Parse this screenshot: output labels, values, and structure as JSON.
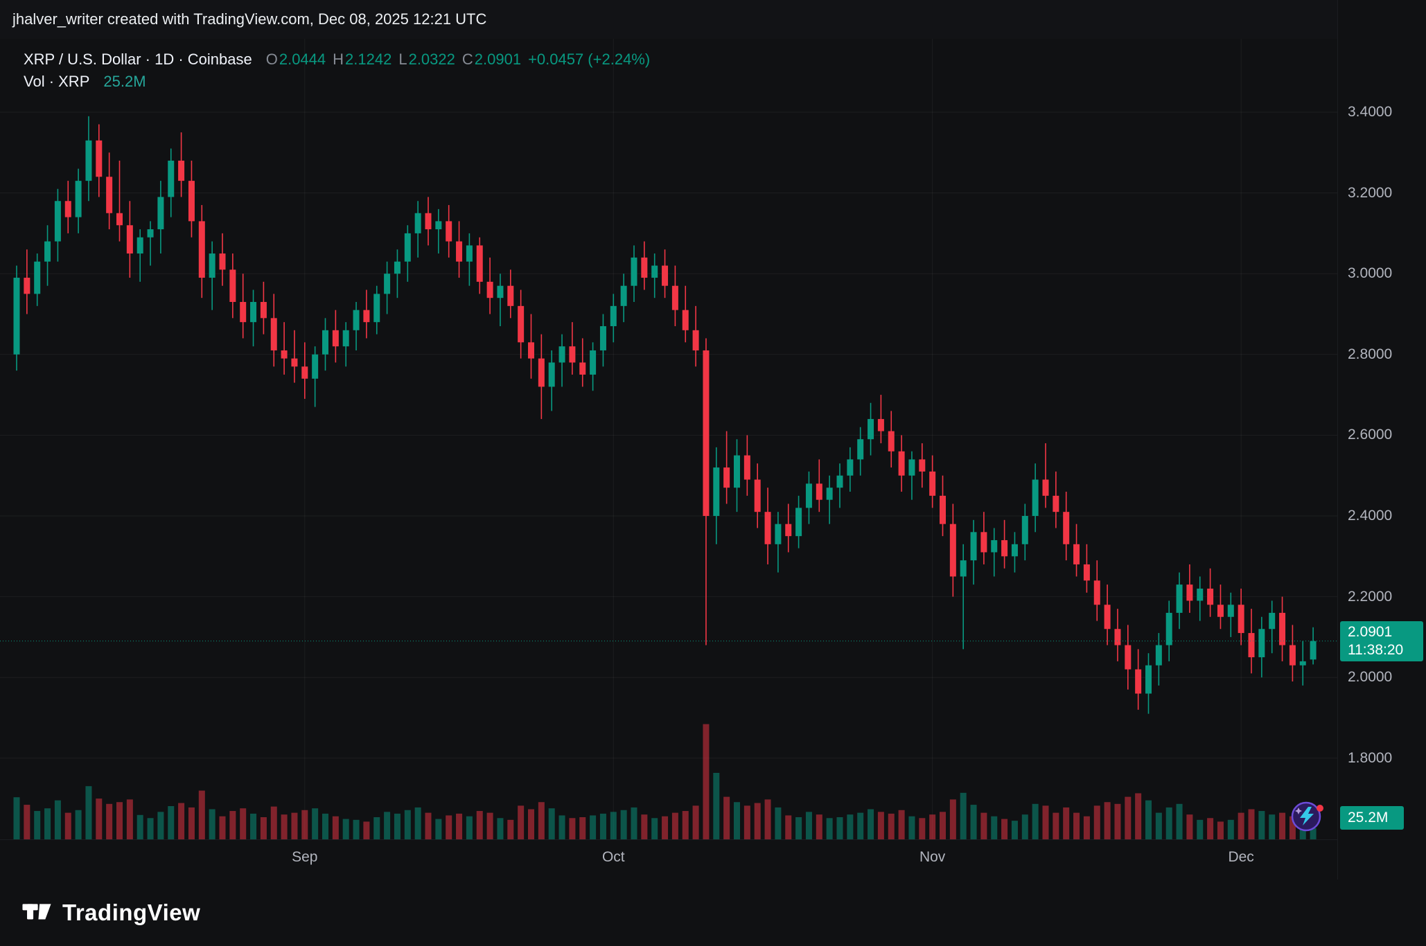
{
  "attribution": {
    "text": "jhalver_writer created with TradingView.com, Dec 08, 2025 12:21 UTC"
  },
  "legend": {
    "title": "XRP / U.S. Dollar · 1D · Coinbase",
    "ohlc": [
      {
        "label": "O",
        "value": "2.0444"
      },
      {
        "label": "H",
        "value": "2.1242"
      },
      {
        "label": "L",
        "value": "2.0322"
      },
      {
        "label": "C",
        "value": "2.0901"
      }
    ],
    "change": "+0.0457 (+2.24%)",
    "volume_label": "Vol · XRP",
    "volume_value": "25.2M"
  },
  "price_axis": {
    "last_price": "2.0901",
    "countdown": "11:38:20",
    "volume_badge": "25.2M"
  },
  "footer": {
    "brand": "TradingView"
  },
  "colors": {
    "up": "#089981",
    "down": "#f23645",
    "vol_up": "rgba(8,153,129,0.5)",
    "vol_down": "rgba(242,54,69,0.5)",
    "accent_badge": "#089981",
    "axis_text": "#b2b5be",
    "grid": "rgba(255,255,255,0.055)"
  },
  "chart_data": {
    "type": "candlestick",
    "title": "XRP / U.S. Dollar · 1D · Coinbase",
    "symbol": "XRP/USD",
    "exchange": "Coinbase",
    "timeframe": "1D",
    "year": 2025,
    "last_price": 2.0901,
    "today": {
      "open": 2.0444,
      "high": 2.1242,
      "low": 2.0322,
      "close": 2.0901,
      "change": 0.0457,
      "change_pct": 2.24,
      "volume_m": 25.2
    },
    "y_ticks": [
      3.4,
      3.2,
      3.0,
      2.8,
      2.6,
      2.4,
      2.2,
      2.0,
      1.8
    ],
    "ylim": [
      1.62,
      3.45
    ],
    "x_ticks": [
      {
        "label": "Sep",
        "index": 28
      },
      {
        "label": "Oct",
        "index": 58
      },
      {
        "label": "Nov",
        "index": 89
      },
      {
        "label": "Dec",
        "index": 119
      }
    ],
    "grid": true,
    "legend_position": "top-left",
    "volume_unit": "M XRP",
    "candles": [
      [
        "08-04",
        2.8,
        3.02,
        2.76,
        2.99,
        95
      ],
      [
        "08-05",
        2.99,
        3.06,
        2.9,
        2.95,
        78
      ],
      [
        "08-06",
        2.95,
        3.05,
        2.92,
        3.03,
        64
      ],
      [
        "08-07",
        3.03,
        3.12,
        2.97,
        3.08,
        70
      ],
      [
        "08-08",
        3.08,
        3.21,
        3.03,
        3.18,
        88
      ],
      [
        "08-09",
        3.18,
        3.23,
        3.1,
        3.14,
        60
      ],
      [
        "08-10",
        3.14,
        3.26,
        3.1,
        3.23,
        66
      ],
      [
        "08-11",
        3.23,
        3.39,
        3.18,
        3.33,
        120
      ],
      [
        "08-12",
        3.33,
        3.37,
        3.19,
        3.24,
        92
      ],
      [
        "08-13",
        3.24,
        3.3,
        3.11,
        3.15,
        80
      ],
      [
        "08-14",
        3.15,
        3.28,
        3.08,
        3.12,
        84
      ],
      [
        "08-15",
        3.12,
        3.18,
        2.99,
        3.05,
        90
      ],
      [
        "08-16",
        3.05,
        3.11,
        2.98,
        3.09,
        55
      ],
      [
        "08-17",
        3.09,
        3.13,
        3.02,
        3.11,
        48
      ],
      [
        "08-18",
        3.11,
        3.23,
        3.05,
        3.19,
        62
      ],
      [
        "08-19",
        3.19,
        3.31,
        3.14,
        3.28,
        75
      ],
      [
        "08-20",
        3.28,
        3.35,
        3.19,
        3.23,
        82
      ],
      [
        "08-21",
        3.23,
        3.28,
        3.09,
        3.13,
        72
      ],
      [
        "08-22",
        3.13,
        3.17,
        2.94,
        2.99,
        110
      ],
      [
        "08-23",
        2.99,
        3.08,
        2.91,
        3.05,
        68
      ],
      [
        "08-24",
        3.05,
        3.1,
        2.97,
        3.01,
        52
      ],
      [
        "08-25",
        3.01,
        3.05,
        2.89,
        2.93,
        64
      ],
      [
        "08-26",
        2.93,
        3.0,
        2.84,
        2.88,
        70
      ],
      [
        "08-27",
        2.88,
        2.96,
        2.82,
        2.93,
        58
      ],
      [
        "08-28",
        2.93,
        2.98,
        2.85,
        2.89,
        50
      ],
      [
        "08-29",
        2.89,
        2.95,
        2.77,
        2.81,
        74
      ],
      [
        "08-30",
        2.81,
        2.88,
        2.75,
        2.79,
        56
      ],
      [
        "08-31",
        2.79,
        2.86,
        2.73,
        2.77,
        60
      ],
      [
        "09-01",
        2.77,
        2.83,
        2.69,
        2.74,
        66
      ],
      [
        "09-02",
        2.74,
        2.82,
        2.67,
        2.8,
        70
      ],
      [
        "09-03",
        2.8,
        2.89,
        2.76,
        2.86,
        58
      ],
      [
        "09-04",
        2.86,
        2.91,
        2.78,
        2.82,
        52
      ],
      [
        "09-05",
        2.82,
        2.88,
        2.77,
        2.86,
        46
      ],
      [
        "09-06",
        2.86,
        2.93,
        2.81,
        2.91,
        44
      ],
      [
        "09-07",
        2.91,
        2.96,
        2.84,
        2.88,
        40
      ],
      [
        "09-08",
        2.88,
        2.97,
        2.85,
        2.95,
        50
      ],
      [
        "09-09",
        2.95,
        3.03,
        2.9,
        3.0,
        62
      ],
      [
        "09-10",
        3.0,
        3.06,
        2.94,
        3.03,
        58
      ],
      [
        "09-11",
        3.03,
        3.12,
        2.98,
        3.1,
        66
      ],
      [
        "09-12",
        3.1,
        3.18,
        3.04,
        3.15,
        72
      ],
      [
        "09-13",
        3.15,
        3.19,
        3.07,
        3.11,
        60
      ],
      [
        "09-14",
        3.11,
        3.16,
        3.05,
        3.13,
        46
      ],
      [
        "09-15",
        3.13,
        3.17,
        3.04,
        3.08,
        54
      ],
      [
        "09-16",
        3.08,
        3.13,
        2.99,
        3.03,
        58
      ],
      [
        "09-17",
        3.03,
        3.1,
        2.97,
        3.07,
        52
      ],
      [
        "09-18",
        3.07,
        3.09,
        2.95,
        2.98,
        64
      ],
      [
        "09-19",
        2.98,
        3.04,
        2.9,
        2.94,
        60
      ],
      [
        "09-20",
        2.94,
        3.0,
        2.87,
        2.97,
        48
      ],
      [
        "09-21",
        2.97,
        3.01,
        2.89,
        2.92,
        44
      ],
      [
        "09-22",
        2.92,
        2.96,
        2.79,
        2.83,
        76
      ],
      [
        "09-23",
        2.83,
        2.9,
        2.74,
        2.79,
        68
      ],
      [
        "09-24",
        2.79,
        2.85,
        2.64,
        2.72,
        84
      ],
      [
        "09-25",
        2.72,
        2.81,
        2.66,
        2.78,
        70
      ],
      [
        "09-26",
        2.78,
        2.85,
        2.72,
        2.82,
        54
      ],
      [
        "09-27",
        2.82,
        2.88,
        2.75,
        2.78,
        48
      ],
      [
        "09-28",
        2.78,
        2.84,
        2.72,
        2.75,
        50
      ],
      [
        "09-29",
        2.75,
        2.83,
        2.71,
        2.81,
        54
      ],
      [
        "09-30",
        2.81,
        2.9,
        2.77,
        2.87,
        58
      ],
      [
        "10-01",
        2.87,
        2.95,
        2.83,
        2.92,
        62
      ],
      [
        "10-02",
        2.92,
        3.0,
        2.88,
        2.97,
        66
      ],
      [
        "10-03",
        2.97,
        3.07,
        2.93,
        3.04,
        72
      ],
      [
        "10-04",
        3.04,
        3.08,
        2.96,
        2.99,
        56
      ],
      [
        "10-05",
        2.99,
        3.05,
        2.94,
        3.02,
        48
      ],
      [
        "10-06",
        3.02,
        3.06,
        2.94,
        2.97,
        52
      ],
      [
        "10-07",
        2.97,
        3.02,
        2.87,
        2.91,
        60
      ],
      [
        "10-08",
        2.91,
        2.97,
        2.83,
        2.86,
        64
      ],
      [
        "10-09",
        2.86,
        2.92,
        2.77,
        2.81,
        76
      ],
      [
        "10-10",
        2.81,
        2.84,
        2.08,
        2.4,
        260
      ],
      [
        "10-11",
        2.4,
        2.57,
        2.33,
        2.52,
        150
      ],
      [
        "10-12",
        2.52,
        2.61,
        2.43,
        2.47,
        96
      ],
      [
        "10-13",
        2.47,
        2.59,
        2.41,
        2.55,
        84
      ],
      [
        "10-14",
        2.55,
        2.6,
        2.45,
        2.49,
        76
      ],
      [
        "10-15",
        2.49,
        2.53,
        2.37,
        2.41,
        82
      ],
      [
        "10-16",
        2.41,
        2.47,
        2.28,
        2.33,
        90
      ],
      [
        "10-17",
        2.33,
        2.41,
        2.26,
        2.38,
        72
      ],
      [
        "10-18",
        2.38,
        2.43,
        2.31,
        2.35,
        54
      ],
      [
        "10-19",
        2.35,
        2.45,
        2.32,
        2.42,
        50
      ],
      [
        "10-20",
        2.42,
        2.51,
        2.38,
        2.48,
        62
      ],
      [
        "10-21",
        2.48,
        2.54,
        2.41,
        2.44,
        56
      ],
      [
        "10-22",
        2.44,
        2.5,
        2.38,
        2.47,
        48
      ],
      [
        "10-23",
        2.47,
        2.53,
        2.42,
        2.5,
        50
      ],
      [
        "10-24",
        2.5,
        2.57,
        2.46,
        2.54,
        56
      ],
      [
        "10-25",
        2.54,
        2.62,
        2.5,
        2.59,
        60
      ],
      [
        "10-26",
        2.59,
        2.68,
        2.55,
        2.64,
        68
      ],
      [
        "10-27",
        2.64,
        2.7,
        2.58,
        2.61,
        62
      ],
      [
        "10-28",
        2.61,
        2.66,
        2.52,
        2.56,
        58
      ],
      [
        "10-29",
        2.56,
        2.6,
        2.46,
        2.5,
        66
      ],
      [
        "10-30",
        2.5,
        2.56,
        2.44,
        2.54,
        52
      ],
      [
        "10-31",
        2.54,
        2.58,
        2.47,
        2.51,
        48
      ],
      [
        "11-01",
        2.51,
        2.55,
        2.42,
        2.45,
        56
      ],
      [
        "11-02",
        2.45,
        2.5,
        2.35,
        2.38,
        62
      ],
      [
        "11-03",
        2.38,
        2.43,
        2.2,
        2.25,
        90
      ],
      [
        "11-04",
        2.25,
        2.33,
        2.07,
        2.29,
        105
      ],
      [
        "11-05",
        2.29,
        2.39,
        2.23,
        2.36,
        78
      ],
      [
        "11-06",
        2.36,
        2.41,
        2.28,
        2.31,
        60
      ],
      [
        "11-07",
        2.31,
        2.37,
        2.25,
        2.34,
        52
      ],
      [
        "11-08",
        2.34,
        2.39,
        2.27,
        2.3,
        46
      ],
      [
        "11-09",
        2.3,
        2.36,
        2.26,
        2.33,
        42
      ],
      [
        "11-10",
        2.33,
        2.43,
        2.29,
        2.4,
        56
      ],
      [
        "11-11",
        2.4,
        2.53,
        2.36,
        2.49,
        80
      ],
      [
        "11-12",
        2.49,
        2.58,
        2.42,
        2.45,
        76
      ],
      [
        "11-13",
        2.45,
        2.51,
        2.37,
        2.41,
        60
      ],
      [
        "11-14",
        2.41,
        2.46,
        2.29,
        2.33,
        72
      ],
      [
        "11-15",
        2.33,
        2.38,
        2.25,
        2.28,
        60
      ],
      [
        "11-16",
        2.28,
        2.33,
        2.21,
        2.24,
        52
      ],
      [
        "11-17",
        2.24,
        2.29,
        2.14,
        2.18,
        76
      ],
      [
        "11-18",
        2.18,
        2.23,
        2.08,
        2.12,
        84
      ],
      [
        "11-19",
        2.12,
        2.17,
        2.04,
        2.08,
        80
      ],
      [
        "11-20",
        2.08,
        2.13,
        1.97,
        2.02,
        96
      ],
      [
        "11-21",
        2.02,
        2.07,
        1.92,
        1.96,
        104
      ],
      [
        "11-22",
        1.96,
        2.06,
        1.91,
        2.03,
        88
      ],
      [
        "11-23",
        2.03,
        2.11,
        1.98,
        2.08,
        60
      ],
      [
        "11-24",
        2.08,
        2.19,
        2.04,
        2.16,
        72
      ],
      [
        "11-25",
        2.16,
        2.26,
        2.12,
        2.23,
        80
      ],
      [
        "11-26",
        2.23,
        2.28,
        2.16,
        2.19,
        56
      ],
      [
        "11-27",
        2.19,
        2.25,
        2.14,
        2.22,
        44
      ],
      [
        "11-28",
        2.22,
        2.27,
        2.15,
        2.18,
        48
      ],
      [
        "11-29",
        2.18,
        2.23,
        2.12,
        2.15,
        40
      ],
      [
        "11-30",
        2.15,
        2.21,
        2.1,
        2.18,
        44
      ],
      [
        "12-01",
        2.18,
        2.22,
        2.08,
        2.11,
        60
      ],
      [
        "12-02",
        2.11,
        2.17,
        2.01,
        2.05,
        68
      ],
      [
        "12-03",
        2.05,
        2.15,
        2.0,
        2.12,
        64
      ],
      [
        "12-04",
        2.12,
        2.19,
        2.06,
        2.16,
        56
      ],
      [
        "12-05",
        2.16,
        2.2,
        2.04,
        2.08,
        60
      ],
      [
        "12-06",
        2.08,
        2.13,
        1.99,
        2.03,
        52
      ],
      [
        "12-07",
        2.03,
        2.09,
        1.98,
        2.04,
        44
      ],
      [
        "12-08",
        2.0444,
        2.1242,
        2.0322,
        2.0901,
        25.2
      ]
    ]
  }
}
